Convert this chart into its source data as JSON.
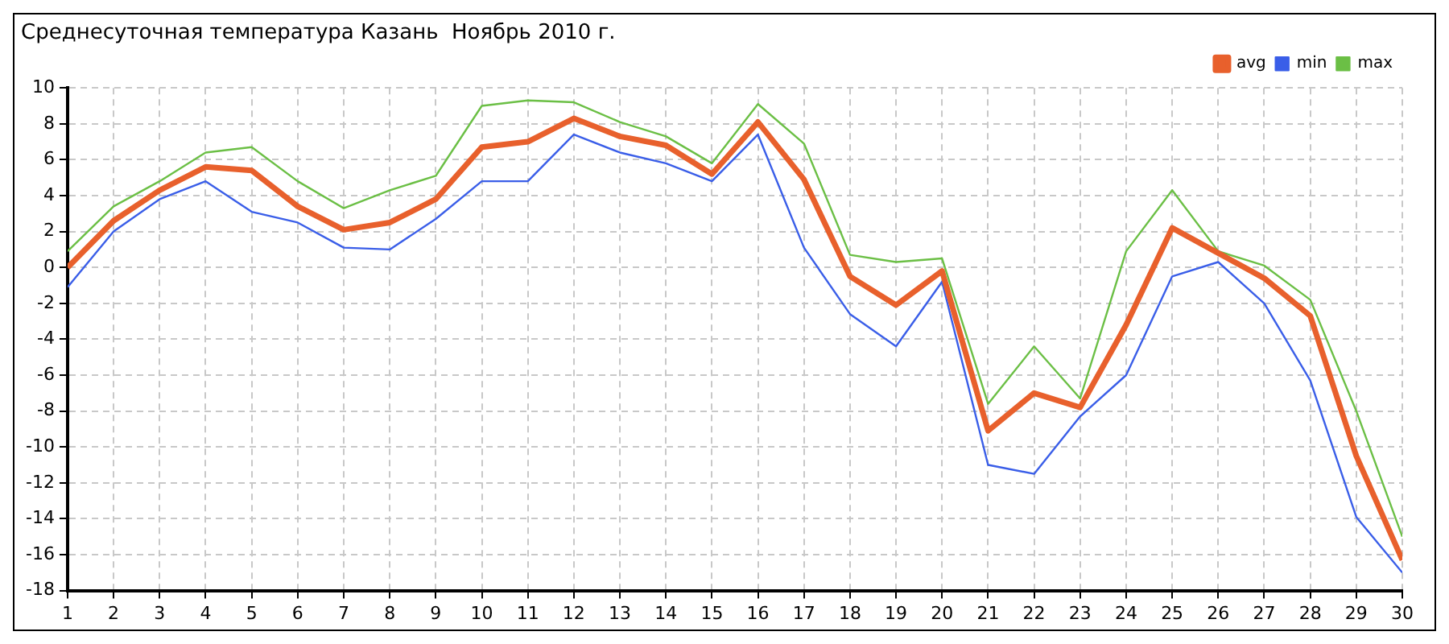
{
  "chart_data": {
    "type": "line",
    "title": "Среднесуточная температура Казань  Ноябрь 2010 г.",
    "x": [
      1,
      2,
      3,
      4,
      5,
      6,
      7,
      8,
      9,
      10,
      11,
      12,
      13,
      14,
      15,
      16,
      17,
      18,
      19,
      20,
      21,
      22,
      23,
      24,
      25,
      26,
      27,
      28,
      29,
      30
    ],
    "series": [
      {
        "name": "min",
        "color": "#3a5ee8",
        "values": [
          -1.1,
          2.0,
          3.8,
          4.8,
          3.1,
          2.5,
          1.1,
          1.0,
          2.7,
          4.8,
          4.8,
          7.4,
          6.4,
          5.8,
          4.8,
          7.4,
          1.1,
          -2.6,
          -4.4,
          -0.8,
          -11.0,
          -11.5,
          -8.3,
          -6.0,
          -0.5,
          0.3,
          -2.0,
          -6.3,
          -13.9,
          -17.0
        ]
      },
      {
        "name": "avg",
        "color": "#e8602c",
        "values": [
          0,
          2.6,
          4.3,
          5.6,
          5.4,
          3.4,
          2.1,
          2.5,
          3.8,
          6.7,
          7.0,
          8.3,
          7.3,
          6.8,
          5.2,
          8.1,
          4.9,
          -0.5,
          -2.1,
          -0.2,
          -9.1,
          -7.0,
          -7.8,
          -3.2,
          2.2,
          0.8,
          -0.6,
          -2.7,
          -10.5,
          -16.3
        ]
      },
      {
        "name": "max",
        "color": "#6bbf45",
        "values": [
          0.9,
          3.4,
          4.8,
          6.4,
          6.7,
          4.8,
          3.3,
          4.3,
          5.1,
          9.0,
          9.3,
          9.2,
          8.1,
          7.3,
          5.8,
          9.1,
          6.9,
          0.7,
          0.3,
          0.5,
          -7.6,
          -4.4,
          -7.3,
          0.9,
          4.3,
          0.9,
          0.1,
          -1.8,
          -8.0,
          -15.0
        ]
      }
    ],
    "xlim": [
      1,
      30
    ],
    "xticks": [
      1,
      2,
      3,
      4,
      5,
      6,
      7,
      8,
      9,
      10,
      11,
      12,
      13,
      14,
      15,
      16,
      17,
      18,
      19,
      20,
      21,
      22,
      23,
      24,
      25,
      26,
      27,
      28,
      29,
      30
    ],
    "ylim": [
      -18,
      10
    ],
    "yticks": [
      -18,
      -16,
      -14,
      -12,
      -10,
      -8,
      -6,
      -4,
      -2,
      0,
      2,
      4,
      6,
      8,
      10
    ],
    "grid": true,
    "legend": "top right",
    "marker": "none",
    "line_style": "solid"
  }
}
